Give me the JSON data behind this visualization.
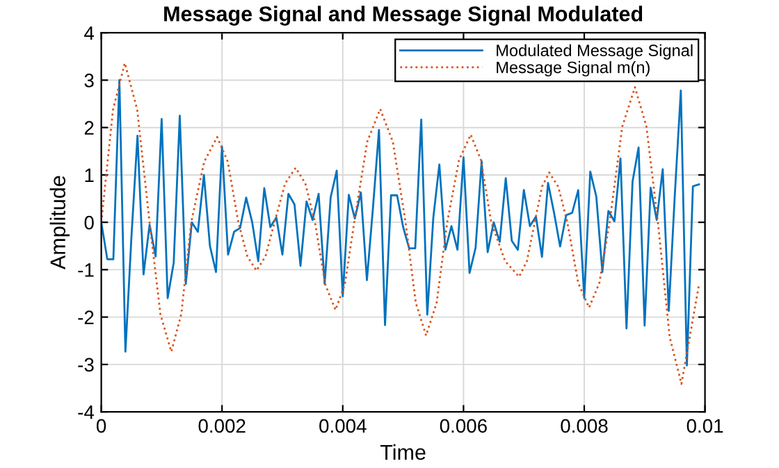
{
  "chart_data": {
    "type": "line",
    "title": "Message Signal and Message Signal Modulated",
    "xlabel": "Time",
    "ylabel": "Amplitude",
    "xlim": [
      0,
      0.01
    ],
    "xticks": [
      0,
      0.002,
      0.004,
      0.006,
      0.008,
      0.01
    ],
    "ylim": [
      -4,
      4
    ],
    "yticks": [
      -4,
      -3,
      -2,
      -1,
      0,
      1,
      2,
      3,
      4
    ],
    "grid": true,
    "legend": "top right",
    "series": [
      {
        "name": "Modulated Message Signal",
        "color": "#0072bd",
        "line_style": "solid",
        "x": [
          0,
          0.0001,
          0.0002,
          0.0003,
          0.0004,
          0.0005,
          0.0006,
          0.0007,
          0.0008,
          0.0009,
          0.001,
          0.0011,
          0.0012,
          0.0013,
          0.0014,
          0.0015,
          0.0016,
          0.0017,
          0.0018,
          0.0019,
          0.002,
          0.0021,
          0.0022,
          0.0023,
          0.0024,
          0.0025,
          0.0026,
          0.0027,
          0.0028,
          0.0029,
          0.003,
          0.0031,
          0.0032,
          0.0033,
          0.0034,
          0.0035,
          0.0036,
          0.0037,
          0.0038,
          0.0039,
          0.004,
          0.0041,
          0.0042,
          0.0043,
          0.0044,
          0.0045,
          0.0046,
          0.0047,
          0.0048,
          0.0049,
          0.005,
          0.0051,
          0.0052,
          0.0053,
          0.0054,
          0.0055,
          0.0056,
          0.0057,
          0.0058,
          0.0059,
          0.006,
          0.0061,
          0.0062,
          0.0063,
          0.0064,
          0.0065,
          0.0066,
          0.0067,
          0.0068,
          0.0069,
          0.007,
          0.0071,
          0.0072,
          0.0073,
          0.0074,
          0.0075,
          0.0076,
          0.0077,
          0.0078,
          0.0079,
          0.008,
          0.0081,
          0.0082,
          0.0083,
          0.0084,
          0.0085,
          0.0086,
          0.0087,
          0.0088,
          0.0089,
          0.009,
          0.0091,
          0.0092,
          0.0093,
          0.0094,
          0.0095,
          0.0096,
          0.0097,
          0.0098,
          0.0099
        ],
        "values": [
          0,
          -0.78,
          -0.78,
          3.0,
          -2.73,
          -0.3,
          1.83,
          -1.1,
          -0.05,
          -0.72,
          2.18,
          -1.6,
          -0.85,
          2.25,
          -1.3,
          0.0,
          -0.2,
          1.0,
          -0.5,
          -1.05,
          1.6,
          -0.68,
          -0.2,
          -0.12,
          0.52,
          0.0,
          -0.82,
          0.72,
          -0.1,
          0.1,
          -0.68,
          0.6,
          0.38,
          -0.92,
          0.44,
          0.05,
          0.6,
          -1.3,
          0.53,
          1.09,
          -1.56,
          0.58,
          0.08,
          0.63,
          -1.22,
          0.3,
          1.95,
          -2.17,
          0.57,
          0.57,
          -0.1,
          -0.55,
          -0.55,
          2.17,
          -1.95,
          0.1,
          1.22,
          -0.58,
          -0.08,
          -0.58,
          1.37,
          -1.07,
          -0.54,
          1.29,
          -0.63,
          0.0,
          -0.41,
          0.93,
          -0.39,
          -0.58,
          0.68,
          -0.08,
          0.12,
          -0.73,
          0.83,
          0.2,
          -0.51,
          0.15,
          0.2,
          0.68,
          -1.6,
          1.07,
          0.54,
          -1.05,
          0.24,
          0.02,
          1.35,
          -2.24,
          0.86,
          1.58,
          -2.18,
          0.73,
          0.05,
          1.12,
          -1.87,
          0.58,
          2.78,
          -3.02,
          0.76,
          0.8
        ]
      },
      {
        "name": "Message Signal m(n)",
        "color": "#d95319",
        "line_style": "dotted",
        "x": [
          0,
          0.000195,
          0.00039,
          0.000595,
          0.0008,
          0.00098,
          0.00116,
          0.001325,
          0.00149,
          0.001705,
          0.00192,
          0.002095,
          0.00227,
          0.00242,
          0.00257,
          0.00272,
          0.00287,
          0.003045,
          0.00322,
          0.00338,
          0.00354,
          0.00371,
          0.00388,
          0.004035,
          0.00419,
          0.004405,
          0.00462,
          0.00483,
          0.00504,
          0.00521,
          0.00538,
          0.005555,
          0.00573,
          0.005925,
          0.00612,
          0.00629,
          0.00646,
          0.00669,
          0.00692,
          0.00705,
          0.00718,
          0.0073,
          0.00742,
          0.00757,
          0.00772,
          0.0079,
          0.00808,
          0.00825,
          0.00842,
          0.00863,
          0.00884,
          0.00903,
          0.00922,
          0.009415,
          0.00961,
          0.0099
        ],
        "values": [
          0,
          2.38,
          3.36,
          2.38,
          0,
          -1.94,
          -2.73,
          -1.94,
          0,
          1.28,
          1.8,
          1.28,
          0,
          -0.72,
          -1.02,
          -0.72,
          0,
          0.82,
          1.15,
          0.82,
          0,
          -1.31,
          -1.85,
          -1.31,
          0,
          1.7,
          2.39,
          1.7,
          0,
          -1.7,
          -2.39,
          -1.7,
          0,
          1.31,
          1.85,
          1.31,
          0,
          -0.82,
          -1.15,
          -0.82,
          0,
          0.75,
          1.05,
          0.75,
          0,
          -1.28,
          -1.8,
          -1.28,
          0,
          2.02,
          2.85,
          2.02,
          0,
          -2.42,
          -3.41,
          -1.32
        ]
      }
    ]
  }
}
